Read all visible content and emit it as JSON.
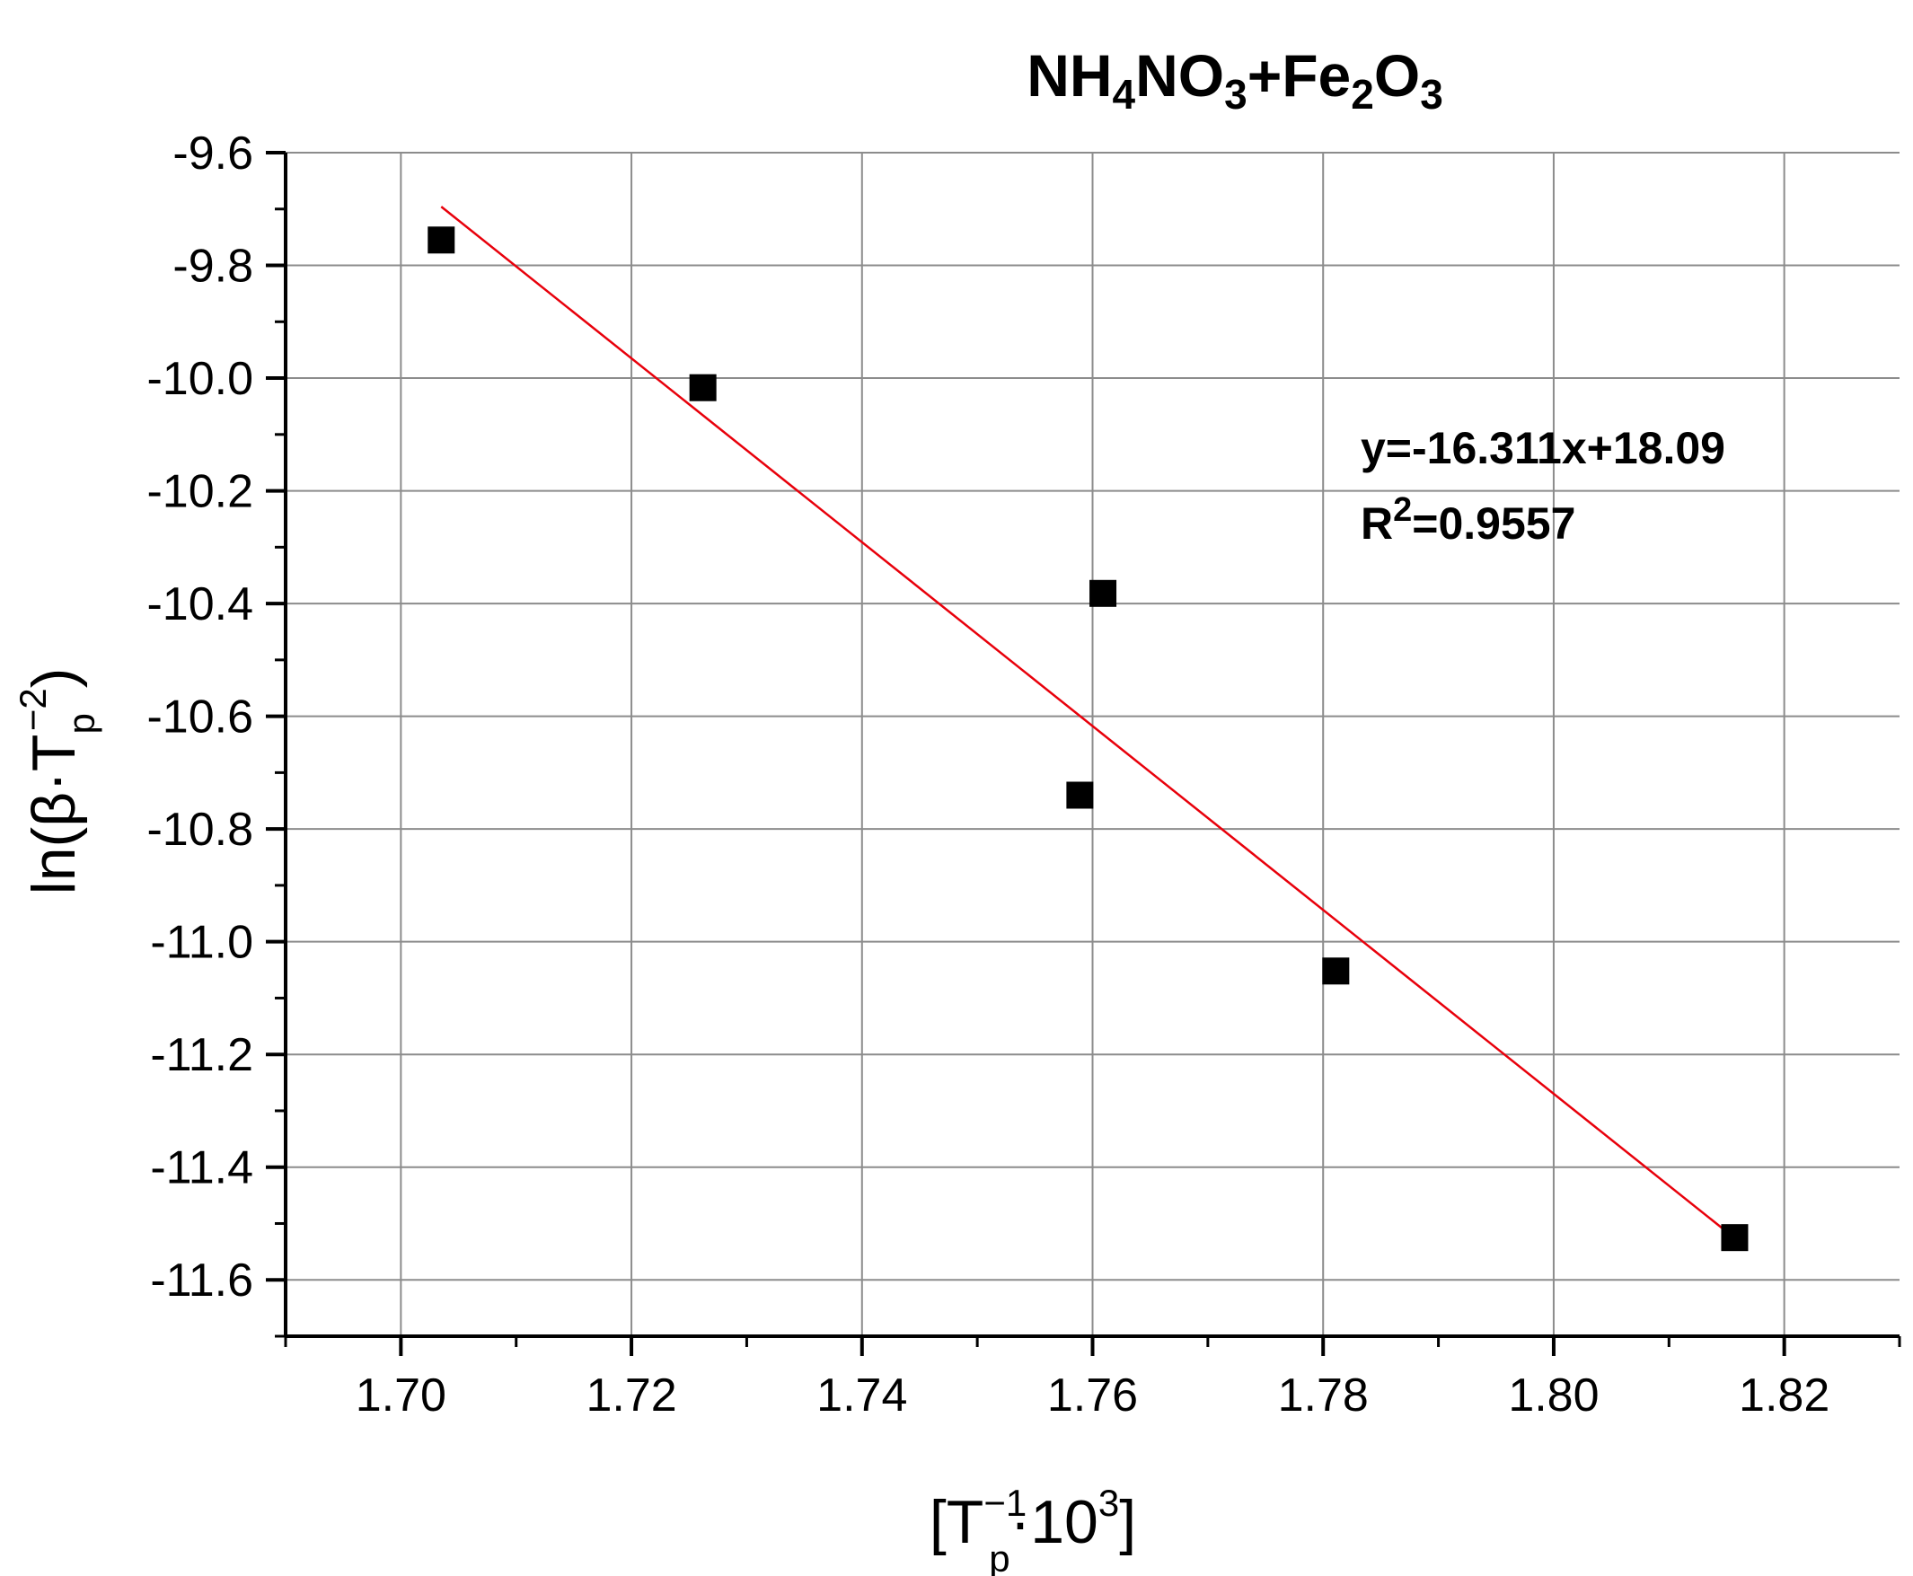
{
  "chart_data": {
    "type": "scatter",
    "title": {
      "parts": [
        {
          "text": "NH",
          "sub": false
        },
        {
          "text": "4",
          "sub": true
        },
        {
          "text": "NO",
          "sub": false
        },
        {
          "text": "3",
          "sub": true
        },
        {
          "text": "+Fe",
          "sub": false
        },
        {
          "text": "2",
          "sub": true
        },
        {
          "text": "O",
          "sub": false
        },
        {
          "text": "3",
          "sub": true
        }
      ]
    },
    "xlabel": {
      "main": "[T",
      "sup": "−1",
      "sub": "p",
      "mid": "·10",
      "sup2": "3",
      "end": "]"
    },
    "ylabel": {
      "main": "ln(β·T",
      "sub": "p",
      "sup": "−2",
      "end": ")"
    },
    "xlim": [
      1.69,
      1.83
    ],
    "ylim": [
      -11.7,
      -9.6
    ],
    "x_ticks": [
      "1.70",
      "1.72",
      "1.74",
      "1.76",
      "1.78",
      "1.80",
      "1.82"
    ],
    "y_ticks": [
      "-9.6",
      "-9.8",
      "-10.0",
      "-10.2",
      "-10.4",
      "-10.6",
      "-10.8",
      "-11.0",
      "-11.2",
      "-11.4",
      "-11.6"
    ],
    "grid": true,
    "series": [
      {
        "marker": "square",
        "color": "#000000",
        "x": [
          1.7035,
          1.7262,
          1.7609,
          1.7589,
          1.7811,
          1.8157
        ],
        "y": [
          -9.755,
          -10.017,
          -10.382,
          -10.74,
          -11.052,
          -11.525
        ]
      }
    ],
    "fit_line": {
      "color": "#e8000b",
      "slope": -16.311,
      "intercept": 18.09,
      "x_range": [
        1.7035,
        1.8157
      ]
    },
    "annotations": {
      "equation": "y=-16.311x+18.09",
      "r2": {
        "main": "R",
        "sup": "2",
        "end": "=0.9557"
      }
    }
  }
}
